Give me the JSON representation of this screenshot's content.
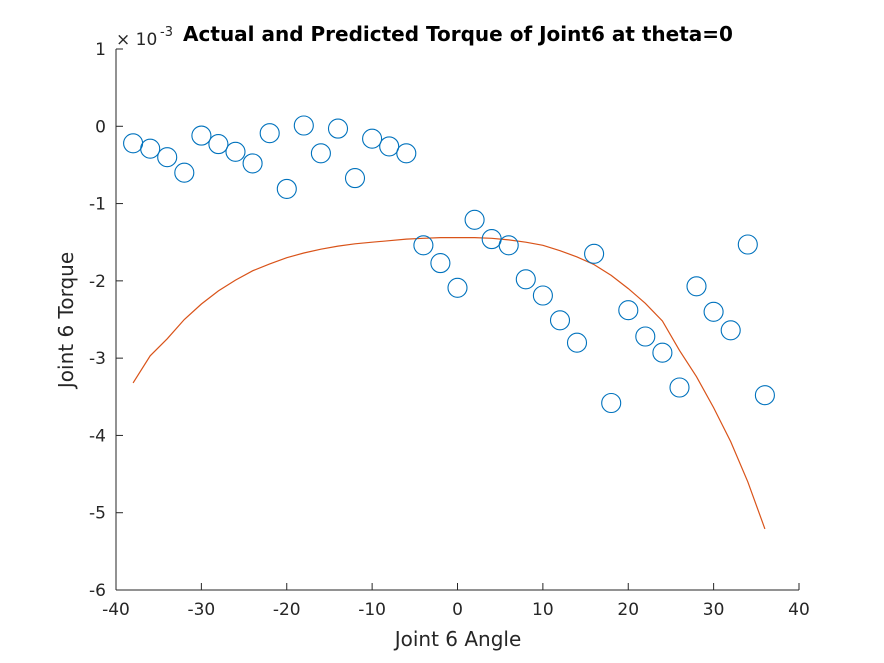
{
  "chart_data": {
    "type": "scatter",
    "title": "Actual and Predicted Torque of Joint6 at theta=0",
    "xlabel": "Joint 6 Angle",
    "ylabel": "Joint 6 Torque",
    "y_exponent_base": "× 10",
    "y_exponent_power": "-3",
    "xlim": [
      -40,
      40
    ],
    "ylim": [
      -6,
      1
    ],
    "xticks": [
      "-40",
      "-30",
      "-20",
      "-10",
      "0",
      "10",
      "20",
      "30",
      "40"
    ],
    "yticks": [
      "-6",
      "-5",
      "-4",
      "-3",
      "-2",
      "-1",
      "0",
      "1"
    ],
    "grid": false,
    "colors": {
      "actual": "#0072BD",
      "predicted": "#D95319",
      "axis": "#262626"
    },
    "series": [
      {
        "style": "markers-circle",
        "x": [
          -38,
          -36,
          -34,
          -32,
          -30,
          -28,
          -26,
          -24,
          -22,
          -20,
          -18,
          -16,
          -14,
          -12,
          -10,
          -8,
          -6,
          -4,
          -2,
          0,
          2,
          4,
          6,
          8,
          10,
          12,
          14,
          16,
          18,
          20,
          22,
          24,
          26,
          28,
          30,
          32,
          34,
          36
        ],
        "y": [
          -0.22,
          -0.29,
          -0.4,
          -0.6,
          -0.12,
          -0.23,
          -0.33,
          -0.48,
          -0.09,
          -0.81,
          0.01,
          -0.35,
          -0.03,
          -0.67,
          -0.16,
          -0.26,
          -0.35,
          -1.54,
          -1.77,
          -2.09,
          -1.21,
          -1.46,
          -1.54,
          -1.98,
          -2.19,
          -2.51,
          -2.8,
          -1.65,
          -3.58,
          -2.38,
          -2.72,
          -2.93,
          -3.38,
          -2.07,
          -2.4,
          -2.64,
          -1.53,
          -3.48
        ]
      },
      {
        "style": "line",
        "x": [
          -38,
          -36,
          -34,
          -32,
          -30,
          -28,
          -26,
          -24,
          -22,
          -20,
          -18,
          -16,
          -14,
          -12,
          -10,
          -8,
          -6,
          -4,
          -2,
          0,
          2,
          4,
          6,
          8,
          10,
          12,
          14,
          16,
          18,
          20,
          22,
          24,
          26,
          28,
          30,
          32,
          34,
          36
        ],
        "y": [
          -3.32,
          -2.97,
          -2.75,
          -2.5,
          -2.3,
          -2.13,
          -1.99,
          -1.87,
          -1.78,
          -1.7,
          -1.64,
          -1.59,
          -1.55,
          -1.52,
          -1.5,
          -1.48,
          -1.46,
          -1.45,
          -1.44,
          -1.44,
          -1.44,
          -1.45,
          -1.47,
          -1.5,
          -1.54,
          -1.61,
          -1.69,
          -1.79,
          -1.93,
          -2.1,
          -2.29,
          -2.52,
          -2.9,
          -3.24,
          -3.64,
          -4.08,
          -4.6,
          -5.21
        ]
      }
    ]
  }
}
